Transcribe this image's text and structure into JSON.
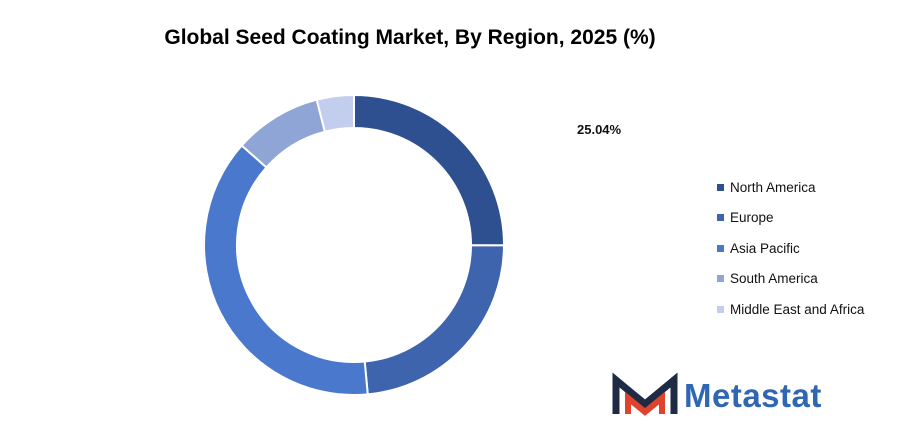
{
  "chart_data": {
    "type": "pie",
    "title": "Global Seed Coating Market, By Region, 2025 (%)",
    "categories": [
      "North America",
      "Europe",
      "Asia Pacific",
      "South America",
      "Middle East and Africa"
    ],
    "values": [
      25.04,
      23.5,
      38.0,
      9.46,
      4.0
    ],
    "colors": [
      "#2e5090",
      "#3d64ad",
      "#4a78cc",
      "#8ea5d6",
      "#c3cded"
    ],
    "data_labels": [
      "25.04%"
    ],
    "legend_position": "right",
    "donut": true
  },
  "brand": {
    "name": "Metastat",
    "icon": "metastat-logo-icon",
    "color": "#2f67b3"
  }
}
